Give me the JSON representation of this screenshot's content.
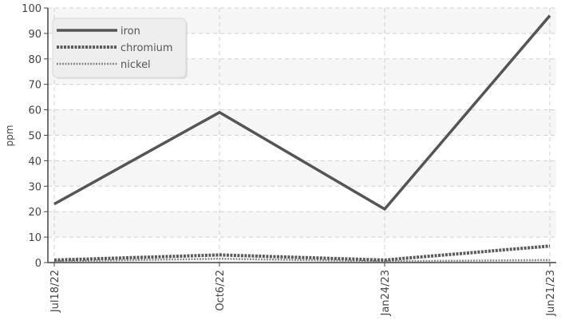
{
  "chart_data": {
    "type": "line",
    "title": "",
    "xlabel": "",
    "ylabel": "ppm",
    "x": [
      "Jul18/22",
      "Oct6/22",
      "Jan24/23",
      "Jun21/23"
    ],
    "ylim": [
      0,
      100
    ],
    "yticks": [
      0,
      10,
      20,
      30,
      40,
      50,
      60,
      70,
      80,
      90,
      100
    ],
    "grid": true,
    "legend": "top-left",
    "series": [
      {
        "name": "iron",
        "values": [
          23,
          59,
          21,
          97
        ],
        "color": "#555555",
        "style": "solid"
      },
      {
        "name": "chromium",
        "values": [
          1,
          3,
          1,
          6.5
        ],
        "color": "#5a5a5a",
        "style": "dashed"
      },
      {
        "name": "nickel",
        "values": [
          0.5,
          1.5,
          0.5,
          1
        ],
        "color": "#8a8a8a",
        "style": "dotted"
      }
    ]
  }
}
